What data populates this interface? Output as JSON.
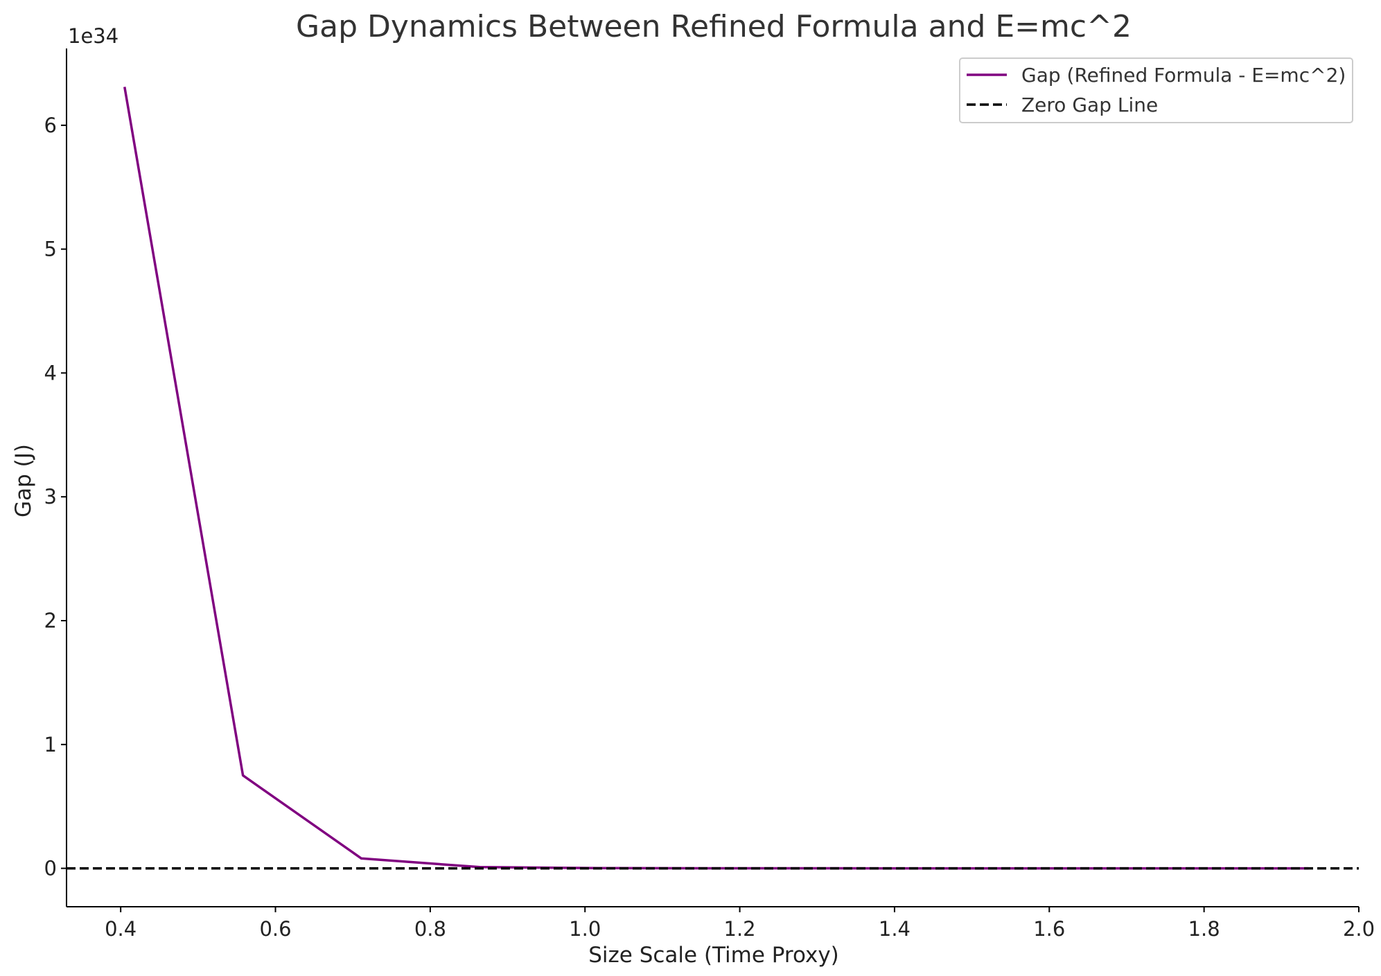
{
  "chart_data": {
    "type": "line",
    "title": "Gap Dynamics Between Refined Formula and E=mc^2",
    "xlabel": "Size Scale (Time Proxy)",
    "ylabel": "Gap (J)",
    "y_offset_label": "1e34",
    "xlim": [
      0.33,
      2.0
    ],
    "ylim": [
      -0.31,
      6.62
    ],
    "x_ticks": [
      0.4,
      0.6,
      0.8,
      1.0,
      1.2,
      1.4,
      1.6,
      1.8,
      2.0
    ],
    "x_tick_labels": [
      "0.4",
      "0.6",
      "0.8",
      "1.0",
      "1.2",
      "1.4",
      "1.6",
      "1.8",
      "2.0"
    ],
    "y_ticks": [
      0,
      1,
      2,
      3,
      4,
      5,
      6
    ],
    "y_tick_labels": [
      "0",
      "1",
      "2",
      "3",
      "4",
      "5",
      "6"
    ],
    "grid": false,
    "legend_position": "top-right",
    "series": [
      {
        "name": "Gap (Refined Formula - E=mc^2)",
        "color": "#800080",
        "style": "solid",
        "x": [
          0.405,
          0.558,
          0.711,
          0.864,
          1.017,
          1.17,
          1.323,
          1.476,
          1.629,
          1.782,
          1.935
        ],
        "y": [
          6.31,
          0.75,
          0.08,
          0.01,
          0.002,
          0.0004,
          0.0001,
          0.0,
          0.0,
          0.0,
          0.0
        ]
      },
      {
        "name": "Zero Gap Line",
        "color": "#000000",
        "style": "dashed",
        "x": [
          0.33,
          2.0
        ],
        "y": [
          0,
          0
        ]
      }
    ]
  }
}
